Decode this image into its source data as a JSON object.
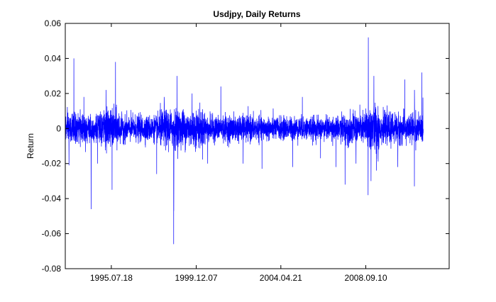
{
  "chart_data": {
    "type": "line",
    "title": "Usdjpy, Daily Returns",
    "xlabel": "",
    "ylabel": "Return",
    "ylim": [
      -0.08,
      0.06
    ],
    "yticks": [
      -0.08,
      -0.06,
      -0.04,
      -0.02,
      0,
      0.02,
      0.04,
      0.06
    ],
    "ytick_labels": [
      "-0.08",
      "-0.06",
      "-0.04",
      "-0.02",
      "0",
      "0.02",
      "0.04",
      "0.06"
    ],
    "xlim": [
      "1993-03-01",
      "2013-01-01"
    ],
    "xticks": [
      "1995-07-18",
      "1999-12-07",
      "2004-04-21",
      "2008-09-10"
    ],
    "xtick_labels": [
      "1995.07.18",
      "1999.12.07",
      "2004.04.21",
      "2008.09.10"
    ],
    "x_start": "1993-03-01",
    "x_end": "2011-08-31",
    "grid": false,
    "line_color": "#0000ff",
    "volatility_regimes": [
      {
        "from": "1993-03-01",
        "to": "1995-01-01",
        "amplitude": 0.0075
      },
      {
        "from": "1995-01-01",
        "to": "1996-01-01",
        "amplitude": 0.0095
      },
      {
        "from": "1996-01-01",
        "to": "1998-01-01",
        "amplitude": 0.0065
      },
      {
        "from": "1998-01-01",
        "to": "2000-06-01",
        "amplitude": 0.0095
      },
      {
        "from": "2000-06-01",
        "to": "2003-01-01",
        "amplitude": 0.0065
      },
      {
        "from": "2003-01-01",
        "to": "2007-06-01",
        "amplitude": 0.0058
      },
      {
        "from": "2007-06-01",
        "to": "2008-09-01",
        "amplitude": 0.0075
      },
      {
        "from": "2008-09-01",
        "to": "2009-06-01",
        "amplitude": 0.0125
      },
      {
        "from": "2009-06-01",
        "to": "2011-09-01",
        "amplitude": 0.0075
      }
    ],
    "spikes": [
      {
        "date": "1993-05-10",
        "value": -0.021
      },
      {
        "date": "1993-08-10",
        "value": 0.04
      },
      {
        "date": "1994-02-15",
        "value": 0.018
      },
      {
        "date": "1994-07-01",
        "value": -0.046
      },
      {
        "date": "1994-11-01",
        "value": -0.02
      },
      {
        "date": "1995-04-10",
        "value": 0.022
      },
      {
        "date": "1995-08-01",
        "value": -0.035
      },
      {
        "date": "1995-09-10",
        "value": 0.022
      },
      {
        "date": "1995-10-05",
        "value": 0.038
      },
      {
        "date": "1995-12-10",
        "value": -0.034
      },
      {
        "date": "1996-06-01",
        "value": -0.018
      },
      {
        "date": "1997-03-01",
        "value": -0.024
      },
      {
        "date": "1997-06-15",
        "value": 0.024
      },
      {
        "date": "1997-11-20",
        "value": -0.026
      },
      {
        "date": "1998-04-10",
        "value": 0.018
      },
      {
        "date": "1998-10-07",
        "value": -0.066
      },
      {
        "date": "1998-10-09",
        "value": -0.047
      },
      {
        "date": "1998-12-10",
        "value": 0.03
      },
      {
        "date": "1999-05-01",
        "value": -0.025
      },
      {
        "date": "1999-09-20",
        "value": 0.02
      },
      {
        "date": "2000-07-10",
        "value": -0.02
      },
      {
        "date": "2001-03-15",
        "value": 0.024
      },
      {
        "date": "2001-09-15",
        "value": -0.022
      },
      {
        "date": "2002-05-10",
        "value": -0.02
      },
      {
        "date": "2003-05-01",
        "value": -0.023
      },
      {
        "date": "2004-12-01",
        "value": -0.022
      },
      {
        "date": "2005-06-01",
        "value": 0.018
      },
      {
        "date": "2006-05-10",
        "value": -0.017
      },
      {
        "date": "2007-02-27",
        "value": -0.022
      },
      {
        "date": "2007-08-16",
        "value": -0.032
      },
      {
        "date": "2008-03-10",
        "value": -0.02
      },
      {
        "date": "2008-10-24",
        "value": -0.038
      },
      {
        "date": "2008-10-28",
        "value": 0.052
      },
      {
        "date": "2008-11-15",
        "value": 0.042
      },
      {
        "date": "2008-12-18",
        "value": -0.03
      },
      {
        "date": "2009-02-10",
        "value": 0.03
      },
      {
        "date": "2009-04-01",
        "value": -0.024
      },
      {
        "date": "2010-05-07",
        "value": -0.022
      },
      {
        "date": "2010-09-15",
        "value": 0.028
      },
      {
        "date": "2011-03-17",
        "value": -0.033
      },
      {
        "date": "2011-03-18",
        "value": 0.022
      },
      {
        "date": "2011-08-04",
        "value": 0.032
      }
    ]
  }
}
